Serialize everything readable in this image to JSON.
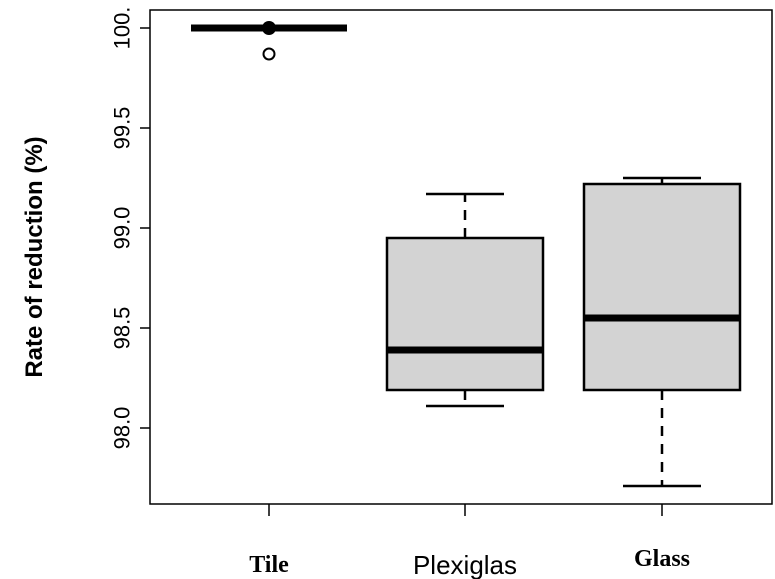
{
  "chart_data": {
    "type": "boxplot",
    "ylabel": "Rate of reduction (%)",
    "xlabel": "",
    "ylim": [
      97.62,
      100.09
    ],
    "y_ticks": [
      {
        "value": 98.0,
        "label": "98.0"
      },
      {
        "value": 98.5,
        "label": "98.5"
      },
      {
        "value": 99.0,
        "label": "99.0"
      },
      {
        "value": 99.5,
        "label": "99.5"
      },
      {
        "value": 100.0,
        "label": "100."
      }
    ],
    "categories": [
      "Tile",
      "Plexiglas",
      "Glass"
    ],
    "boxes": [
      {
        "name": "Tile",
        "whisker_low": 100.0,
        "q1": 100.0,
        "median": 100.0,
        "q3": 100.0,
        "whisker_high": 100.0,
        "outliers": [
          99.87
        ]
      },
      {
        "name": "Plexiglas",
        "whisker_low": 98.11,
        "q1": 98.19,
        "median": 98.39,
        "q3": 98.95,
        "whisker_high": 99.17,
        "outliers": []
      },
      {
        "name": "Glass",
        "whisker_low": 97.71,
        "q1": 98.19,
        "median": 98.55,
        "q3": 99.22,
        "whisker_high": 99.25,
        "outliers": []
      }
    ],
    "box_color": "#d3d3d3",
    "line_color": "#000000"
  }
}
